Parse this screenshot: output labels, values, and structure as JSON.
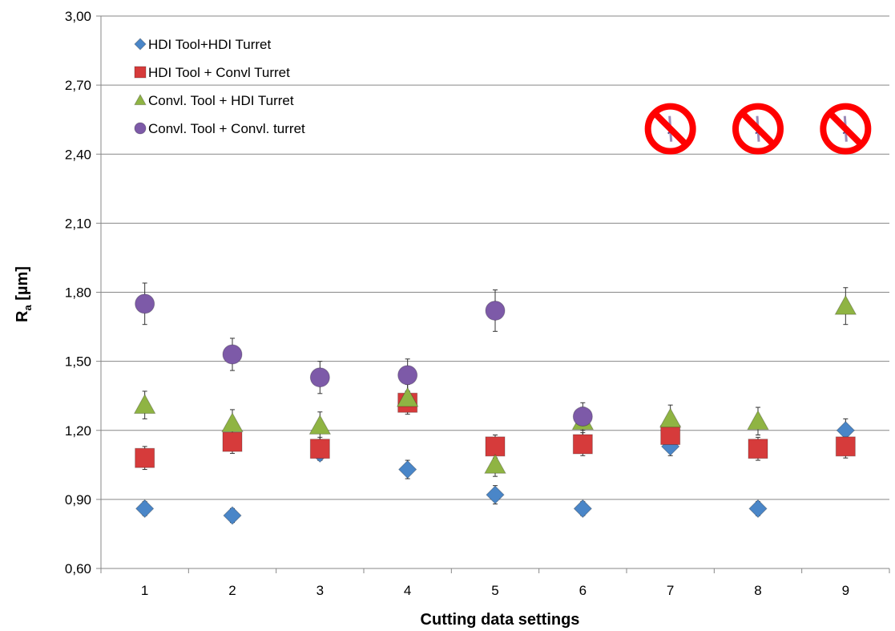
{
  "chart_data": {
    "type": "scatter",
    "xlabel": "Cutting data settings",
    "ylabel_main": "R",
    "ylabel_sub": "a",
    "ylabel_unit": " [µm]",
    "x": [
      1,
      2,
      3,
      4,
      5,
      6,
      7,
      8,
      9
    ],
    "xticks": [
      "1",
      "2",
      "3",
      "4",
      "5",
      "6",
      "7",
      "8",
      "9"
    ],
    "ylim": [
      0.6,
      3.0
    ],
    "yticks": [
      "0,60",
      "0,90",
      "1,20",
      "1,50",
      "1,80",
      "2,10",
      "2,40",
      "2,70",
      "3,00"
    ],
    "grid": "horizontal",
    "legend_position": "top-left",
    "series": [
      {
        "name": "HDI Tool+HDI Turret",
        "marker": "diamond",
        "color": "#4a86c8",
        "values": [
          0.86,
          0.83,
          1.1,
          1.03,
          0.92,
          0.86,
          1.13,
          0.86,
          1.2
        ],
        "errors": [
          0.03,
          0.03,
          0.03,
          0.04,
          0.04,
          0.03,
          0.04,
          0.03,
          0.05
        ]
      },
      {
        "name": "HDI Tool + Convl Turret",
        "marker": "square",
        "color": "#d63b3b",
        "values": [
          1.08,
          1.15,
          1.12,
          1.32,
          1.13,
          1.14,
          1.18,
          1.12,
          1.13
        ],
        "errors": [
          0.05,
          0.05,
          0.05,
          0.05,
          0.05,
          0.05,
          0.05,
          0.05,
          0.05
        ]
      },
      {
        "name": "Convl. Tool + HDI Turret",
        "marker": "triangle",
        "color": "#8fb443",
        "values": [
          1.31,
          1.23,
          1.22,
          1.34,
          1.05,
          1.24,
          1.25,
          1.24,
          1.74
        ],
        "errors": [
          0.06,
          0.06,
          0.06,
          0.06,
          0.05,
          0.06,
          0.06,
          0.06,
          0.08
        ]
      },
      {
        "name": "Convl. Tool + Convl. turret",
        "marker": "circle",
        "color": "#7d5aa8",
        "values": [
          1.75,
          1.53,
          1.43,
          1.44,
          1.72,
          1.26,
          null,
          null,
          null
        ],
        "errors": [
          0.09,
          0.07,
          0.07,
          0.07,
          0.09,
          0.06,
          null,
          null,
          null
        ]
      }
    ],
    "unavailable_markers": [
      7,
      8,
      9
    ],
    "unavailable_marker_y": 2.51,
    "unavailable_icon": "no-entry-drill-icon"
  }
}
